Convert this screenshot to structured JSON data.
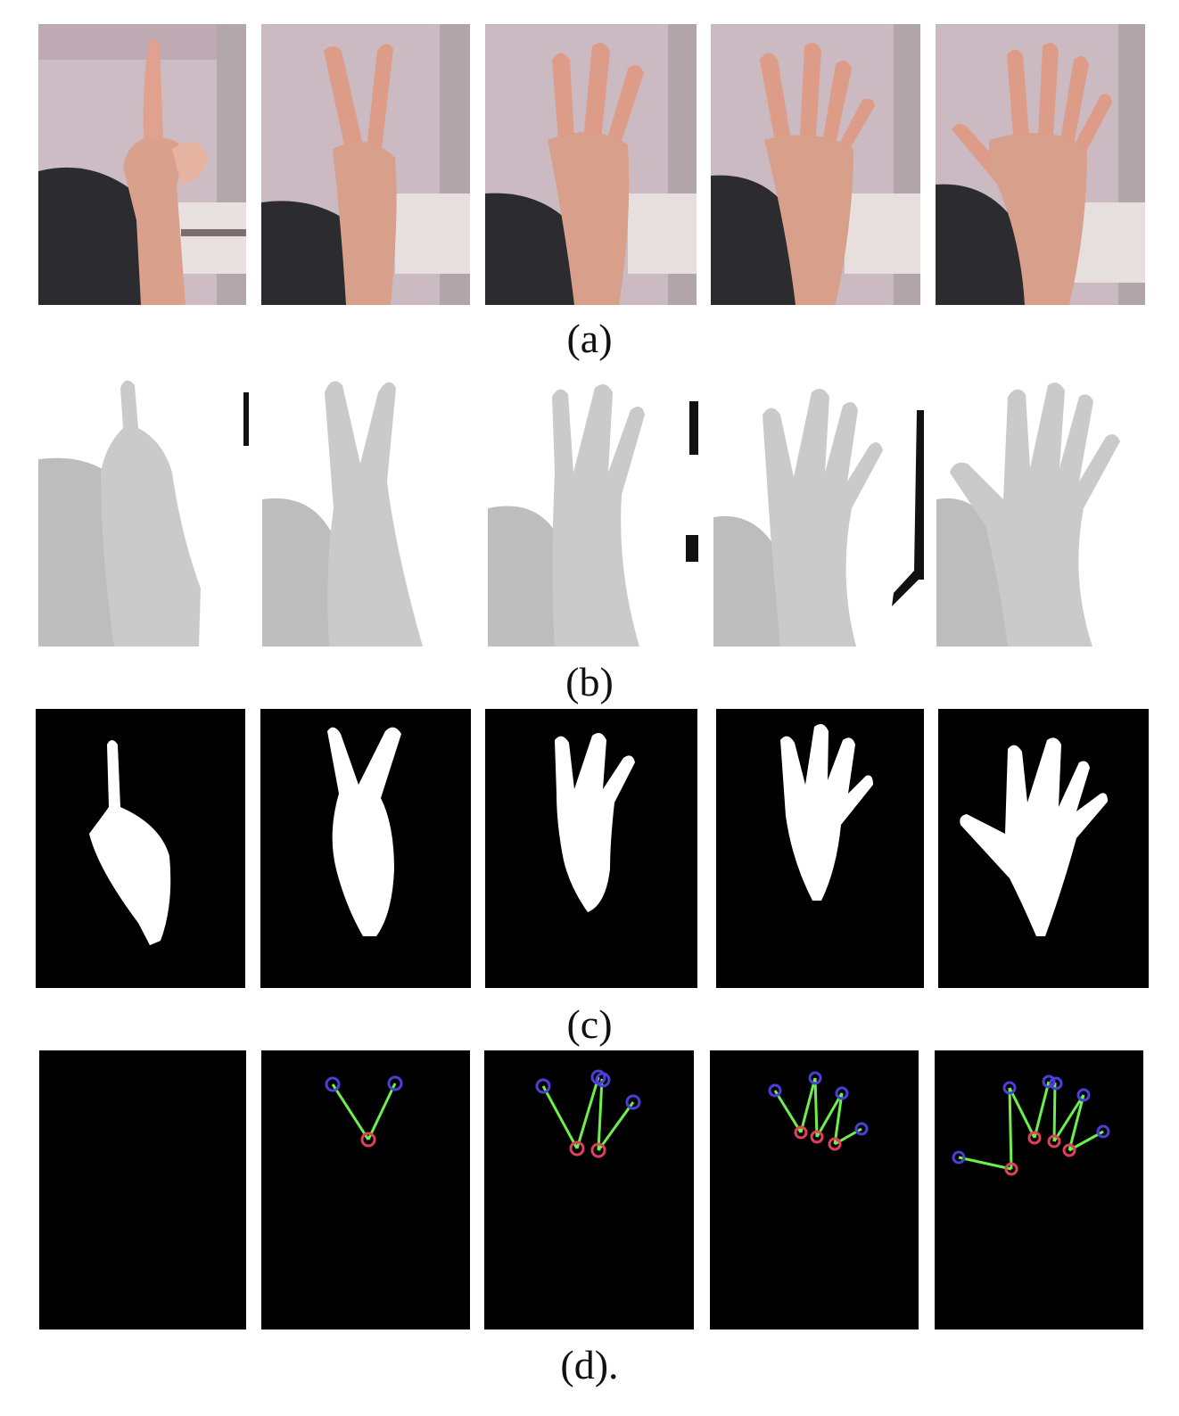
{
  "figure": {
    "rows": [
      {
        "id": "a",
        "caption": "(a)",
        "kind": "rgb-photo"
      },
      {
        "id": "b",
        "caption": "(b)",
        "kind": "depth-map"
      },
      {
        "id": "c",
        "caption": "(c)",
        "kind": "binary-mask"
      },
      {
        "id": "d",
        "caption": "(d).",
        "kind": "fingertip-detection"
      }
    ],
    "gestures": [
      {
        "fingers": 1
      },
      {
        "fingers": 2
      },
      {
        "fingers": 3
      },
      {
        "fingers": 4
      },
      {
        "fingers": 5
      }
    ],
    "colors": {
      "background": "#ffffff",
      "photo_wall": "#c8b6bf",
      "skin": "#d49a86",
      "sleeve": "#2b2a2e",
      "depth_hand": "#c9c9c9",
      "depth_body": "#bcbcbc",
      "mask_bg": "#000000",
      "mask_fg": "#ffffff",
      "fingertip": "#4a3fd6",
      "valley": "#e0405a",
      "skeleton": "#6cf04a"
    }
  }
}
